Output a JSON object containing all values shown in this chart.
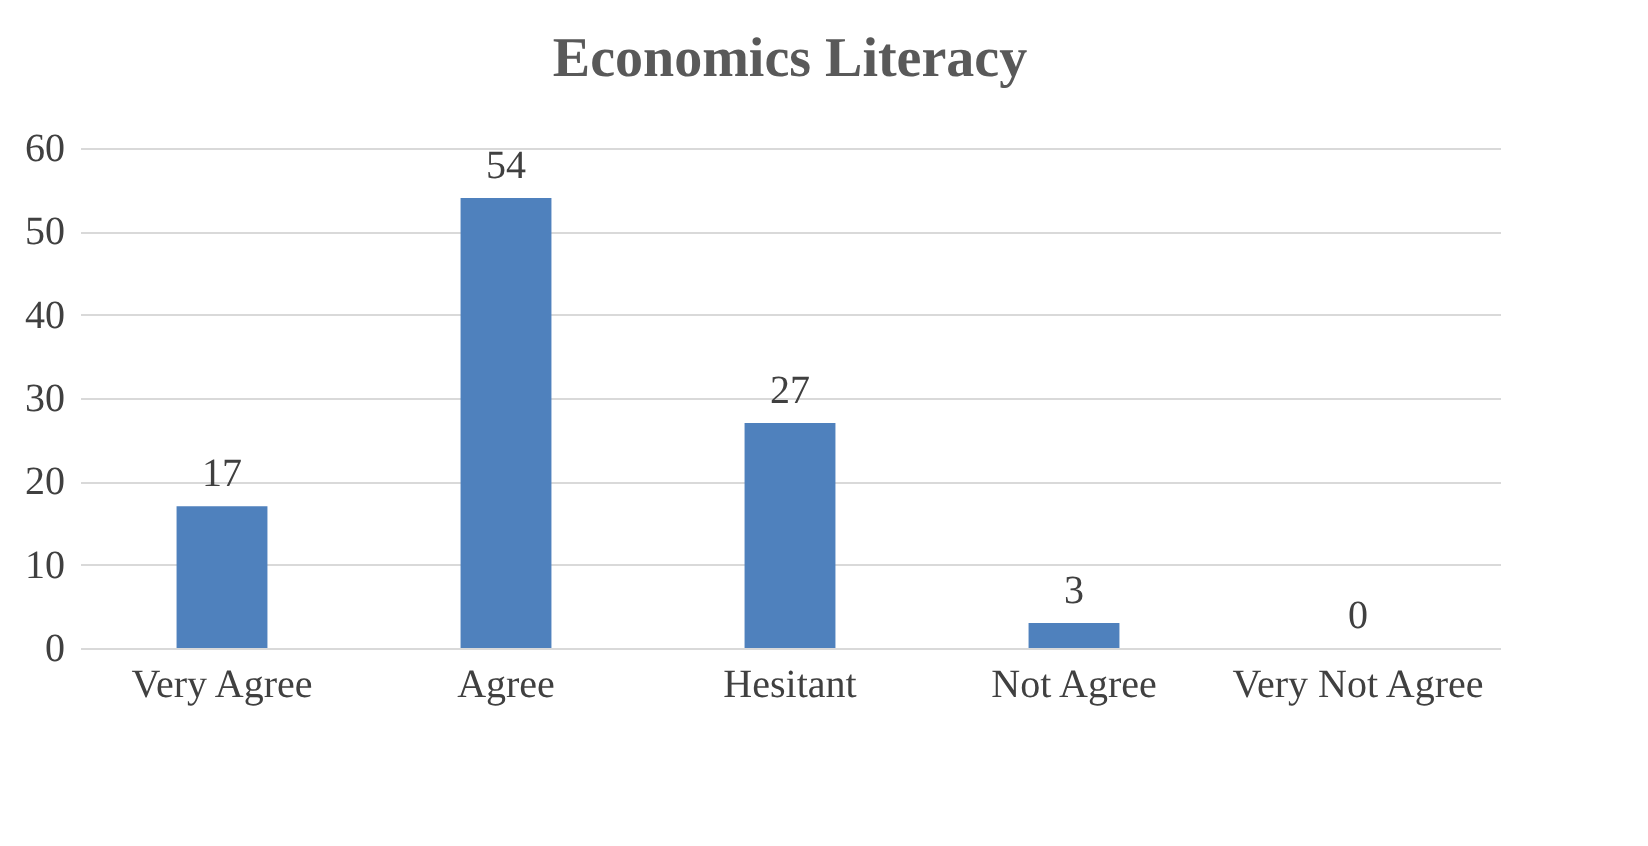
{
  "chart_data": {
    "type": "bar",
    "title": "Economics Literacy",
    "categories": [
      "Very Agree",
      "Agree",
      "Hesitant",
      "Not Agree",
      "Very Not Agree"
    ],
    "values": [
      17,
      54,
      27,
      3,
      0
    ],
    "color": "#4f81bd",
    "ylim": [
      0,
      60
    ],
    "yticks": [
      0,
      10,
      20,
      30,
      40,
      50,
      60
    ],
    "grid": "y",
    "data_labels": true
  }
}
